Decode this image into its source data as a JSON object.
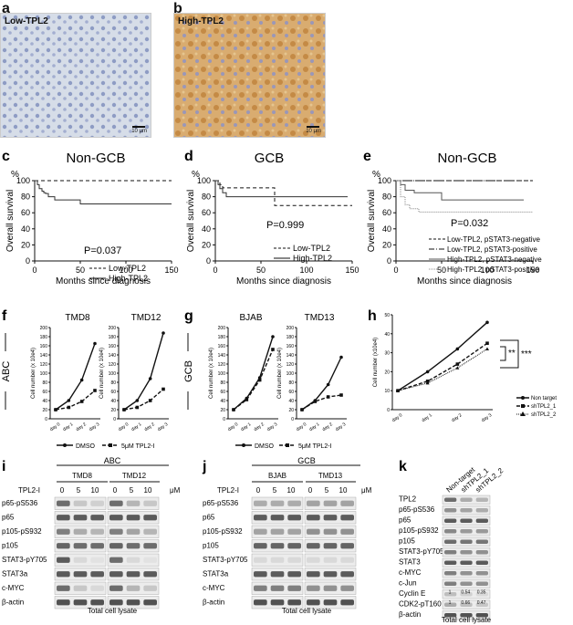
{
  "panels": {
    "a": {
      "letter": "a",
      "tag": "Low-TPL2",
      "scale": "10 μm"
    },
    "b": {
      "letter": "b",
      "tag": "High-TPL2",
      "scale": "10 μm"
    },
    "c": {
      "letter": "c",
      "title": "Non-GCB",
      "pct": "%",
      "pvalue": "P=0.037",
      "legend": [
        "Low-TPL2",
        "High-TPL2"
      ]
    },
    "d": {
      "letter": "d",
      "title": "GCB",
      "pct": "%",
      "pvalue": "P=0.999",
      "legend": [
        "Low-TPL2",
        "High-TPL2"
      ]
    },
    "e": {
      "letter": "e",
      "title": "Non-GCB",
      "pct": "%",
      "pvalue": "P=0.032",
      "legend": [
        "Low-TPL2, pSTAT3-negative",
        "Low-TPL2, pSTAT3-positive",
        "High-TPL2, pSTAT3-negative",
        "High-TPL2, pSTAT3-positive"
      ]
    },
    "f": {
      "letter": "f",
      "group": "ABC",
      "titles": [
        "TMD8",
        "TMD12"
      ],
      "legend": [
        "DMSO",
        "5μM TPL2-I"
      ]
    },
    "g": {
      "letter": "g",
      "group": "GCB",
      "titles": [
        "BJAB",
        "TMD13"
      ],
      "legend": [
        "DMSO",
        "5μM TPL2-I"
      ]
    },
    "h": {
      "letter": "h",
      "legend": [
        "Non target",
        "shTPL2_1",
        "shTPL2_2"
      ],
      "sig1": "**",
      "sig2": "***"
    },
    "i": {
      "letter": "i",
      "group": "ABC",
      "lines": [
        "TMD8",
        "TMD12"
      ],
      "treat": "TPL2-I",
      "doses": [
        "0",
        "5",
        "10"
      ],
      "unit": "μM",
      "rows": [
        "p65-pS536",
        "p65",
        "p105-pS932",
        "p105",
        "STAT3-pY705",
        "STAT3a",
        "c-MYC",
        "β-actin"
      ],
      "footer": "Total cell lysate"
    },
    "j": {
      "letter": "j",
      "group": "GCB",
      "lines": [
        "BJAB",
        "TMD13"
      ],
      "treat": "TPL2-I",
      "doses": [
        "0",
        "5",
        "10"
      ],
      "unit": "μM",
      "rows": [
        "p65-pS536",
        "p65",
        "p105-pS932",
        "p105",
        "STAT3-pY705",
        "STAT3a",
        "c-MYC",
        "β-actin"
      ],
      "footer": "Total cell lysate"
    },
    "k": {
      "letter": "k",
      "cols": [
        "Non-target",
        "shTPL2_1",
        "shTPL2_2"
      ],
      "rows": [
        "TPL2",
        "p65-pS536",
        "p65",
        "p105-pS932",
        "p105",
        "STAT3-pY705",
        "STAT3",
        "c-MYC",
        "c-Jun",
        "Cyclin E",
        "CDK2-pT160",
        "β-actin"
      ],
      "cyclinE": [
        "1",
        "0.54",
        "0.35"
      ],
      "cdk2": [
        "1",
        "0.66",
        "0.47"
      ],
      "footer": "Total cell lysate"
    }
  },
  "km_axes": {
    "xlabel": "Months since diagnosis",
    "ylabel": "Overall survival",
    "xticks": [
      "0",
      "50",
      "100",
      "150"
    ],
    "yticks": [
      "0",
      "20",
      "40",
      "60",
      "80",
      "100"
    ]
  },
  "growth_axes": {
    "ylabel": "Cell number (x 10e4)",
    "ylabel_h": "Cell number (x10e4)",
    "xticks": [
      "day 0",
      "day 1",
      "day 2",
      "day 3"
    ],
    "yticks_fg": [
      "0",
      "20",
      "40",
      "60",
      "80",
      "100",
      "120",
      "140",
      "160",
      "180",
      "200"
    ],
    "yticks_h": [
      "0",
      "10",
      "20",
      "30",
      "40",
      "50"
    ]
  },
  "chart_data": [
    {
      "type": "line",
      "panel": "c",
      "title": "Non-GCB",
      "xlabel": "Months since diagnosis",
      "ylabel": "Overall survival",
      "xlim": [
        0,
        150
      ],
      "ylim": [
        0,
        100
      ],
      "series": [
        {
          "name": "Low-TPL2",
          "style": "dashed",
          "x": [
            0,
            150
          ],
          "y": [
            100,
            100
          ]
        },
        {
          "name": "High-TPL2",
          "style": "solid",
          "x": [
            0,
            3,
            5,
            8,
            10,
            12,
            15,
            22,
            28,
            50,
            150
          ],
          "y": [
            100,
            95,
            90,
            87,
            85,
            84,
            80,
            76,
            76,
            71,
            71
          ]
        }
      ]
    },
    {
      "type": "line",
      "panel": "d",
      "title": "GCB",
      "xlabel": "Months since diagnosis",
      "ylabel": "Overall survival",
      "xlim": [
        0,
        150
      ],
      "ylim": [
        0,
        100
      ],
      "series": [
        {
          "name": "Low-TPL2",
          "style": "dashed",
          "x": [
            0,
            5,
            8,
            65,
            150
          ],
          "y": [
            100,
            95,
            91,
            69,
            69
          ]
        },
        {
          "name": "High-TPL2",
          "style": "solid",
          "x": [
            0,
            3,
            5,
            8,
            12,
            145
          ],
          "y": [
            100,
            95,
            90,
            85,
            80,
            80
          ]
        }
      ]
    },
    {
      "type": "line",
      "panel": "e",
      "title": "Non-GCB",
      "xlabel": "Months since diagnosis",
      "ylabel": "Overall survival",
      "xlim": [
        0,
        150
      ],
      "ylim": [
        0,
        100
      ],
      "series": [
        {
          "name": "Low-TPL2, pSTAT3-negative",
          "style": "dashed",
          "x": [
            0,
            150
          ],
          "y": [
            100,
            100
          ]
        },
        {
          "name": "Low-TPL2, pSTAT3-positive",
          "style": "dashdot",
          "x": [
            0,
            145
          ],
          "y": [
            100,
            100
          ]
        },
        {
          "name": "High-TPL2, pSTAT3-negative",
          "style": "solid",
          "x": [
            0,
            5,
            10,
            20,
            50,
            140
          ],
          "y": [
            100,
            95,
            88,
            85,
            76,
            76
          ]
        },
        {
          "name": "High-TPL2, pSTAT3-positive",
          "style": "dotted",
          "x": [
            0,
            5,
            10,
            15,
            25,
            150
          ],
          "y": [
            100,
            80,
            70,
            65,
            61,
            61
          ]
        }
      ]
    },
    {
      "type": "line",
      "panel": "f",
      "title": "TMD8",
      "xlabel": "",
      "ylabel": "Cell number (x 10e4)",
      "categories": [
        "day 0",
        "day 1",
        "day 2",
        "day 3"
      ],
      "ylim": [
        0,
        200
      ],
      "series": [
        {
          "name": "DMSO",
          "values": [
            20,
            40,
            85,
            165
          ]
        },
        {
          "name": "5μM TPL2-I",
          "values": [
            20,
            25,
            38,
            62
          ]
        }
      ]
    },
    {
      "type": "line",
      "panel": "f",
      "title": "TMD12",
      "xlabel": "",
      "ylabel": "Cell number (x 10e4)",
      "categories": [
        "day 0",
        "day 1",
        "day 2",
        "day 3"
      ],
      "ylim": [
        0,
        200
      ],
      "series": [
        {
          "name": "DMSO",
          "values": [
            20,
            40,
            88,
            188
          ]
        },
        {
          "name": "5μM TPL2-I",
          "values": [
            20,
            25,
            40,
            65
          ]
        }
      ]
    },
    {
      "type": "line",
      "panel": "g",
      "title": "BJAB",
      "xlabel": "",
      "ylabel": "Cell number (x 10e4)",
      "categories": [
        "day 0",
        "day 1",
        "day 2",
        "day 3"
      ],
      "ylim": [
        0,
        200
      ],
      "series": [
        {
          "name": "DMSO",
          "values": [
            20,
            45,
            90,
            180
          ]
        },
        {
          "name": "5μM TPL2-I",
          "values": [
            20,
            42,
            85,
            152
          ]
        }
      ]
    },
    {
      "type": "line",
      "panel": "g",
      "title": "TMD13",
      "xlabel": "",
      "ylabel": "Cell number (x 10e4)",
      "categories": [
        "day 0",
        "day 1",
        "day 2",
        "day 3"
      ],
      "ylim": [
        0,
        200
      ],
      "series": [
        {
          "name": "DMSO",
          "values": [
            20,
            40,
            75,
            135
          ]
        },
        {
          "name": "5μM TPL2-I",
          "values": [
            20,
            38,
            48,
            52
          ]
        }
      ]
    },
    {
      "type": "line",
      "panel": "h",
      "xlabel": "",
      "ylabel": "Cell number (x10e4)",
      "categories": [
        "day 0",
        "day 1",
        "day 2",
        "day 3"
      ],
      "ylim": [
        0,
        50
      ],
      "series": [
        {
          "name": "Non target",
          "values": [
            10,
            20,
            32,
            46
          ]
        },
        {
          "name": "shTPL2_1",
          "values": [
            10,
            15,
            24,
            35
          ]
        },
        {
          "name": "shTPL2_2",
          "values": [
            10,
            14,
            22,
            32
          ]
        }
      ]
    }
  ]
}
